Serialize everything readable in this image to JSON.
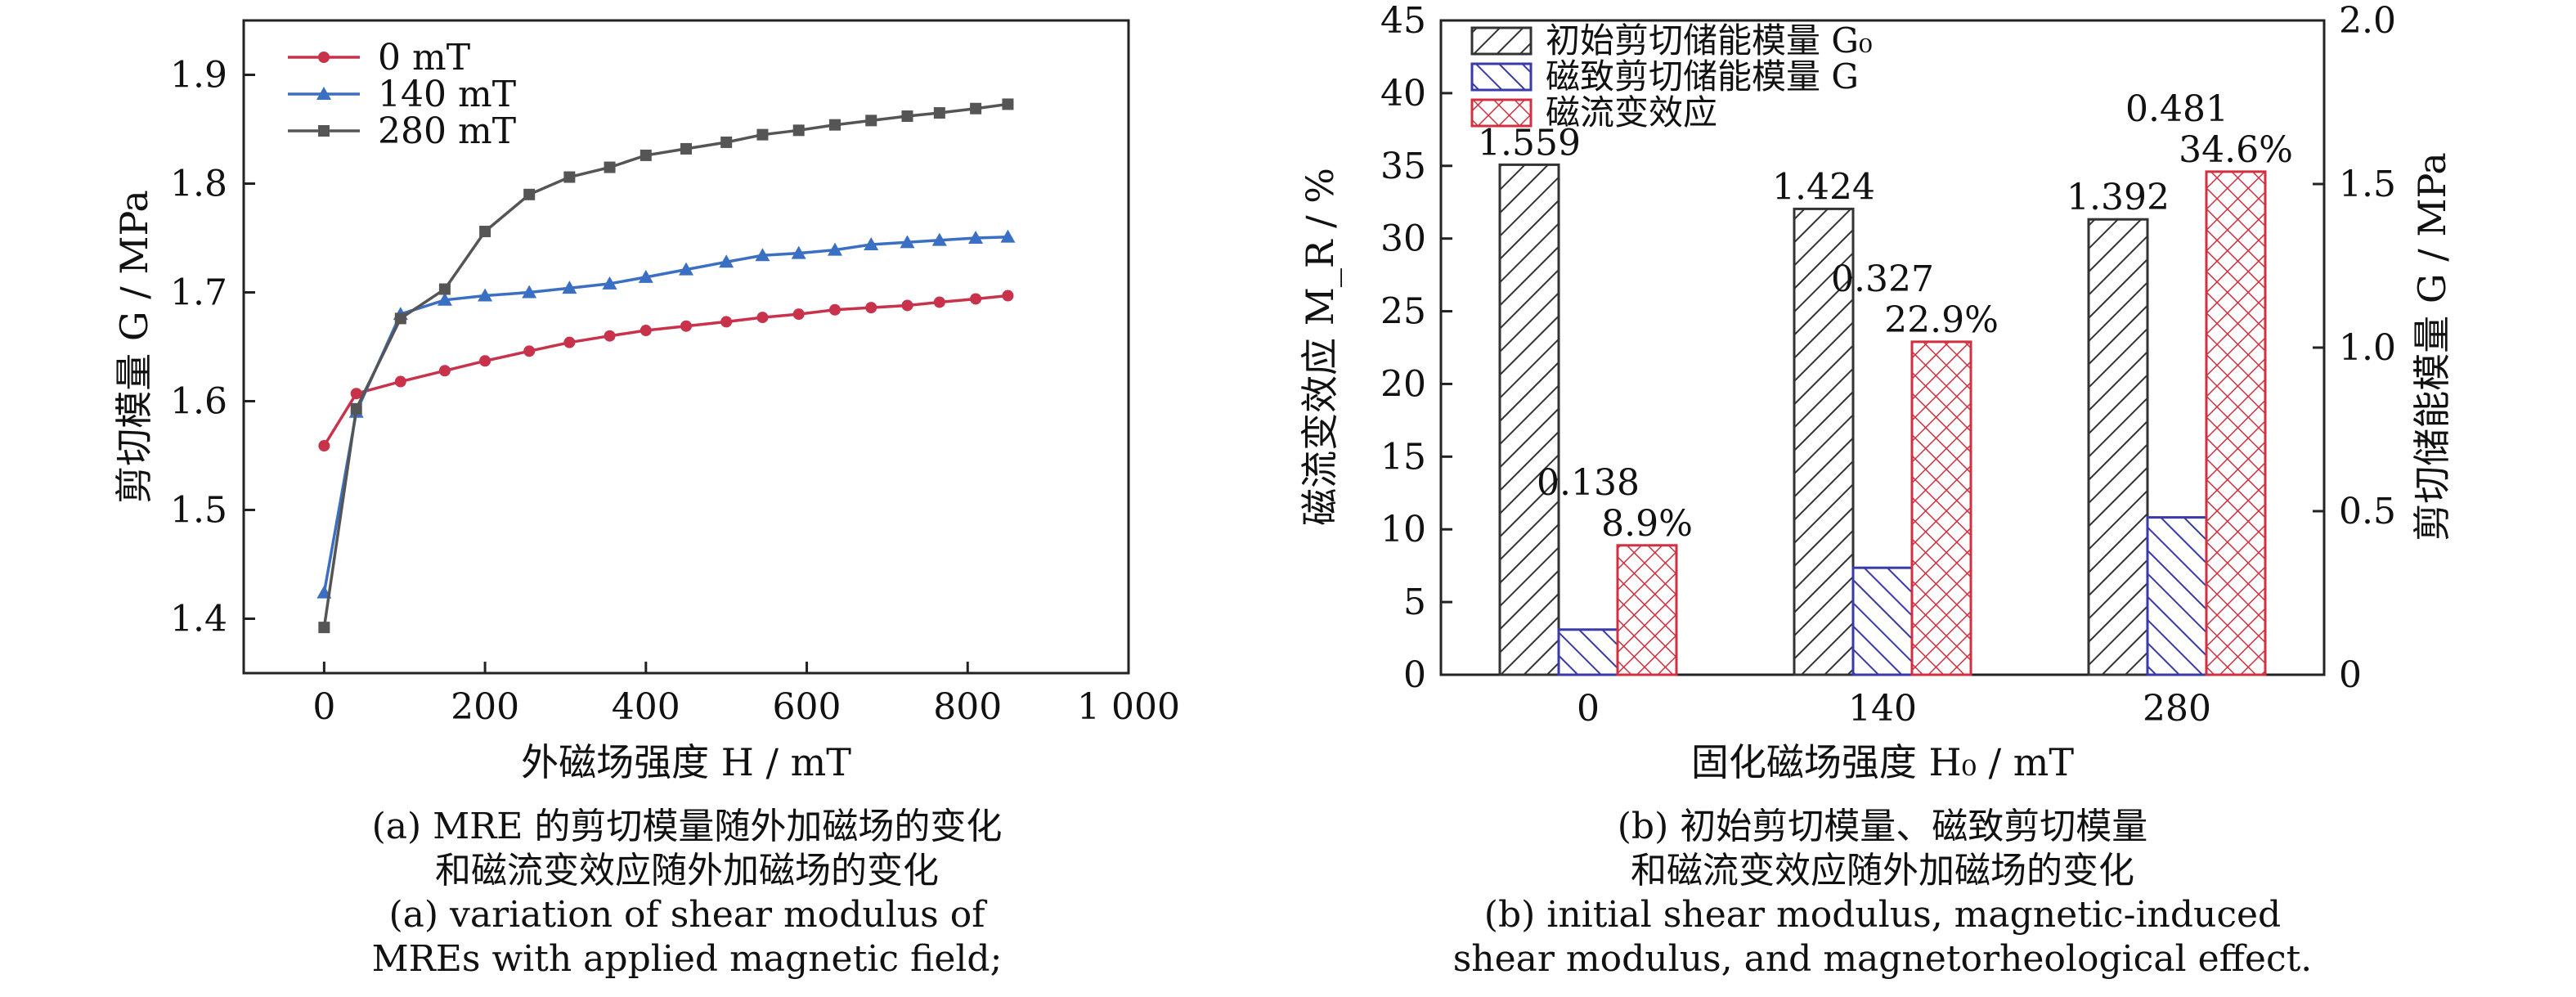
{
  "chart_data": [
    {
      "type": "line",
      "title": "",
      "xlabel": "外磁场强度 H / mT",
      "ylabel": "剪切模量 G / MPa",
      "xlim": [
        -100,
        1000
      ],
      "ylim": [
        1.35,
        1.95
      ],
      "xticks": [
        0,
        200,
        400,
        600,
        800,
        1000
      ],
      "xtick_labels": [
        "0",
        "200",
        "400",
        "600",
        "800",
        "1 000"
      ],
      "yticks": [
        1.4,
        1.5,
        1.6,
        1.7,
        1.8,
        1.9
      ],
      "ytick_labels": [
        "1.4",
        "1.5",
        "1.6",
        "1.7",
        "1.8",
        "1.9"
      ],
      "grid": false,
      "legend_position": "top-left",
      "series": [
        {
          "name": "0 mT",
          "color": "#c8324b",
          "marker": "circle",
          "x": [
            0,
            40,
            95,
            150,
            200,
            255,
            305,
            355,
            400,
            450,
            500,
            545,
            590,
            635,
            680,
            725,
            765,
            810,
            850
          ],
          "y": [
            1.559,
            1.607,
            1.618,
            1.628,
            1.637,
            1.646,
            1.654,
            1.66,
            1.665,
            1.669,
            1.673,
            1.677,
            1.68,
            1.684,
            1.686,
            1.688,
            1.691,
            1.694,
            1.697
          ]
        },
        {
          "name": "140 mT",
          "color": "#3a6fc4",
          "marker": "triangle",
          "x": [
            0,
            40,
            95,
            150,
            200,
            255,
            305,
            355,
            400,
            450,
            500,
            545,
            590,
            635,
            680,
            725,
            765,
            810,
            850
          ],
          "y": [
            1.424,
            1.59,
            1.68,
            1.693,
            1.697,
            1.7,
            1.704,
            1.708,
            1.714,
            1.721,
            1.728,
            1.734,
            1.736,
            1.739,
            1.744,
            1.746,
            1.748,
            1.75,
            1.751
          ]
        },
        {
          "name": "280 mT",
          "color": "#555555",
          "marker": "square",
          "x": [
            0,
            40,
            95,
            150,
            200,
            255,
            305,
            355,
            400,
            450,
            500,
            545,
            590,
            635,
            680,
            725,
            765,
            810,
            850
          ],
          "y": [
            1.392,
            1.593,
            1.676,
            1.703,
            1.756,
            1.79,
            1.806,
            1.815,
            1.826,
            1.832,
            1.838,
            1.845,
            1.849,
            1.854,
            1.858,
            1.862,
            1.865,
            1.869,
            1.873
          ]
        }
      ]
    },
    {
      "type": "bar",
      "title": "",
      "xlabel": "固化磁场强度 H₀ / mT",
      "ylabel_left": "磁流变效应 M_R / %",
      "ylabel_right": "剪切储能模量 G / MPa",
      "categories": [
        "0",
        "140",
        "280"
      ],
      "ylim_left": [
        0,
        45
      ],
      "ylim_right": [
        0,
        2.0
      ],
      "yticks_left": [
        0,
        5,
        10,
        15,
        20,
        25,
        30,
        35,
        40,
        45
      ],
      "yticks_right": [
        "0",
        "0.5",
        "1.0",
        "1.5",
        "2.0"
      ],
      "legend_position": "top-left",
      "series": [
        {
          "name": "初始剪切储能模量 G₀",
          "axis": "right",
          "pattern": "diagonal-hatch",
          "color": "#333333",
          "values": [
            1.559,
            1.424,
            1.392
          ],
          "labels": [
            "1.559",
            "1.424",
            "1.392"
          ]
        },
        {
          "name": "磁致剪切储能模量 G",
          "axis": "right",
          "pattern": "diagonal-hatch-reverse",
          "color": "#3a3aa8",
          "values": [
            0.138,
            0.327,
            0.481
          ],
          "labels": [
            "0.138",
            "0.327",
            "0.481"
          ]
        },
        {
          "name": "磁流变效应",
          "axis": "left",
          "pattern": "cross-hatch",
          "color": "#d03040",
          "values": [
            8.9,
            22.9,
            34.6
          ],
          "labels": [
            "8.9%",
            "22.9%",
            "34.6%"
          ]
        }
      ]
    }
  ],
  "captions": {
    "a": [
      "(a) MRE 的剪切模量随外加磁场的变化",
      "和磁流变效应随外加磁场的变化",
      "(a) variation of shear modulus of",
      "MREs with applied magnetic field;"
    ],
    "b": [
      "(b) 初始剪切模量、磁致剪切模量",
      "和磁流变效应随外加磁场的变化",
      "(b) initial shear modulus, magnetic-induced",
      "shear modulus, and magnetorheological effect."
    ]
  }
}
